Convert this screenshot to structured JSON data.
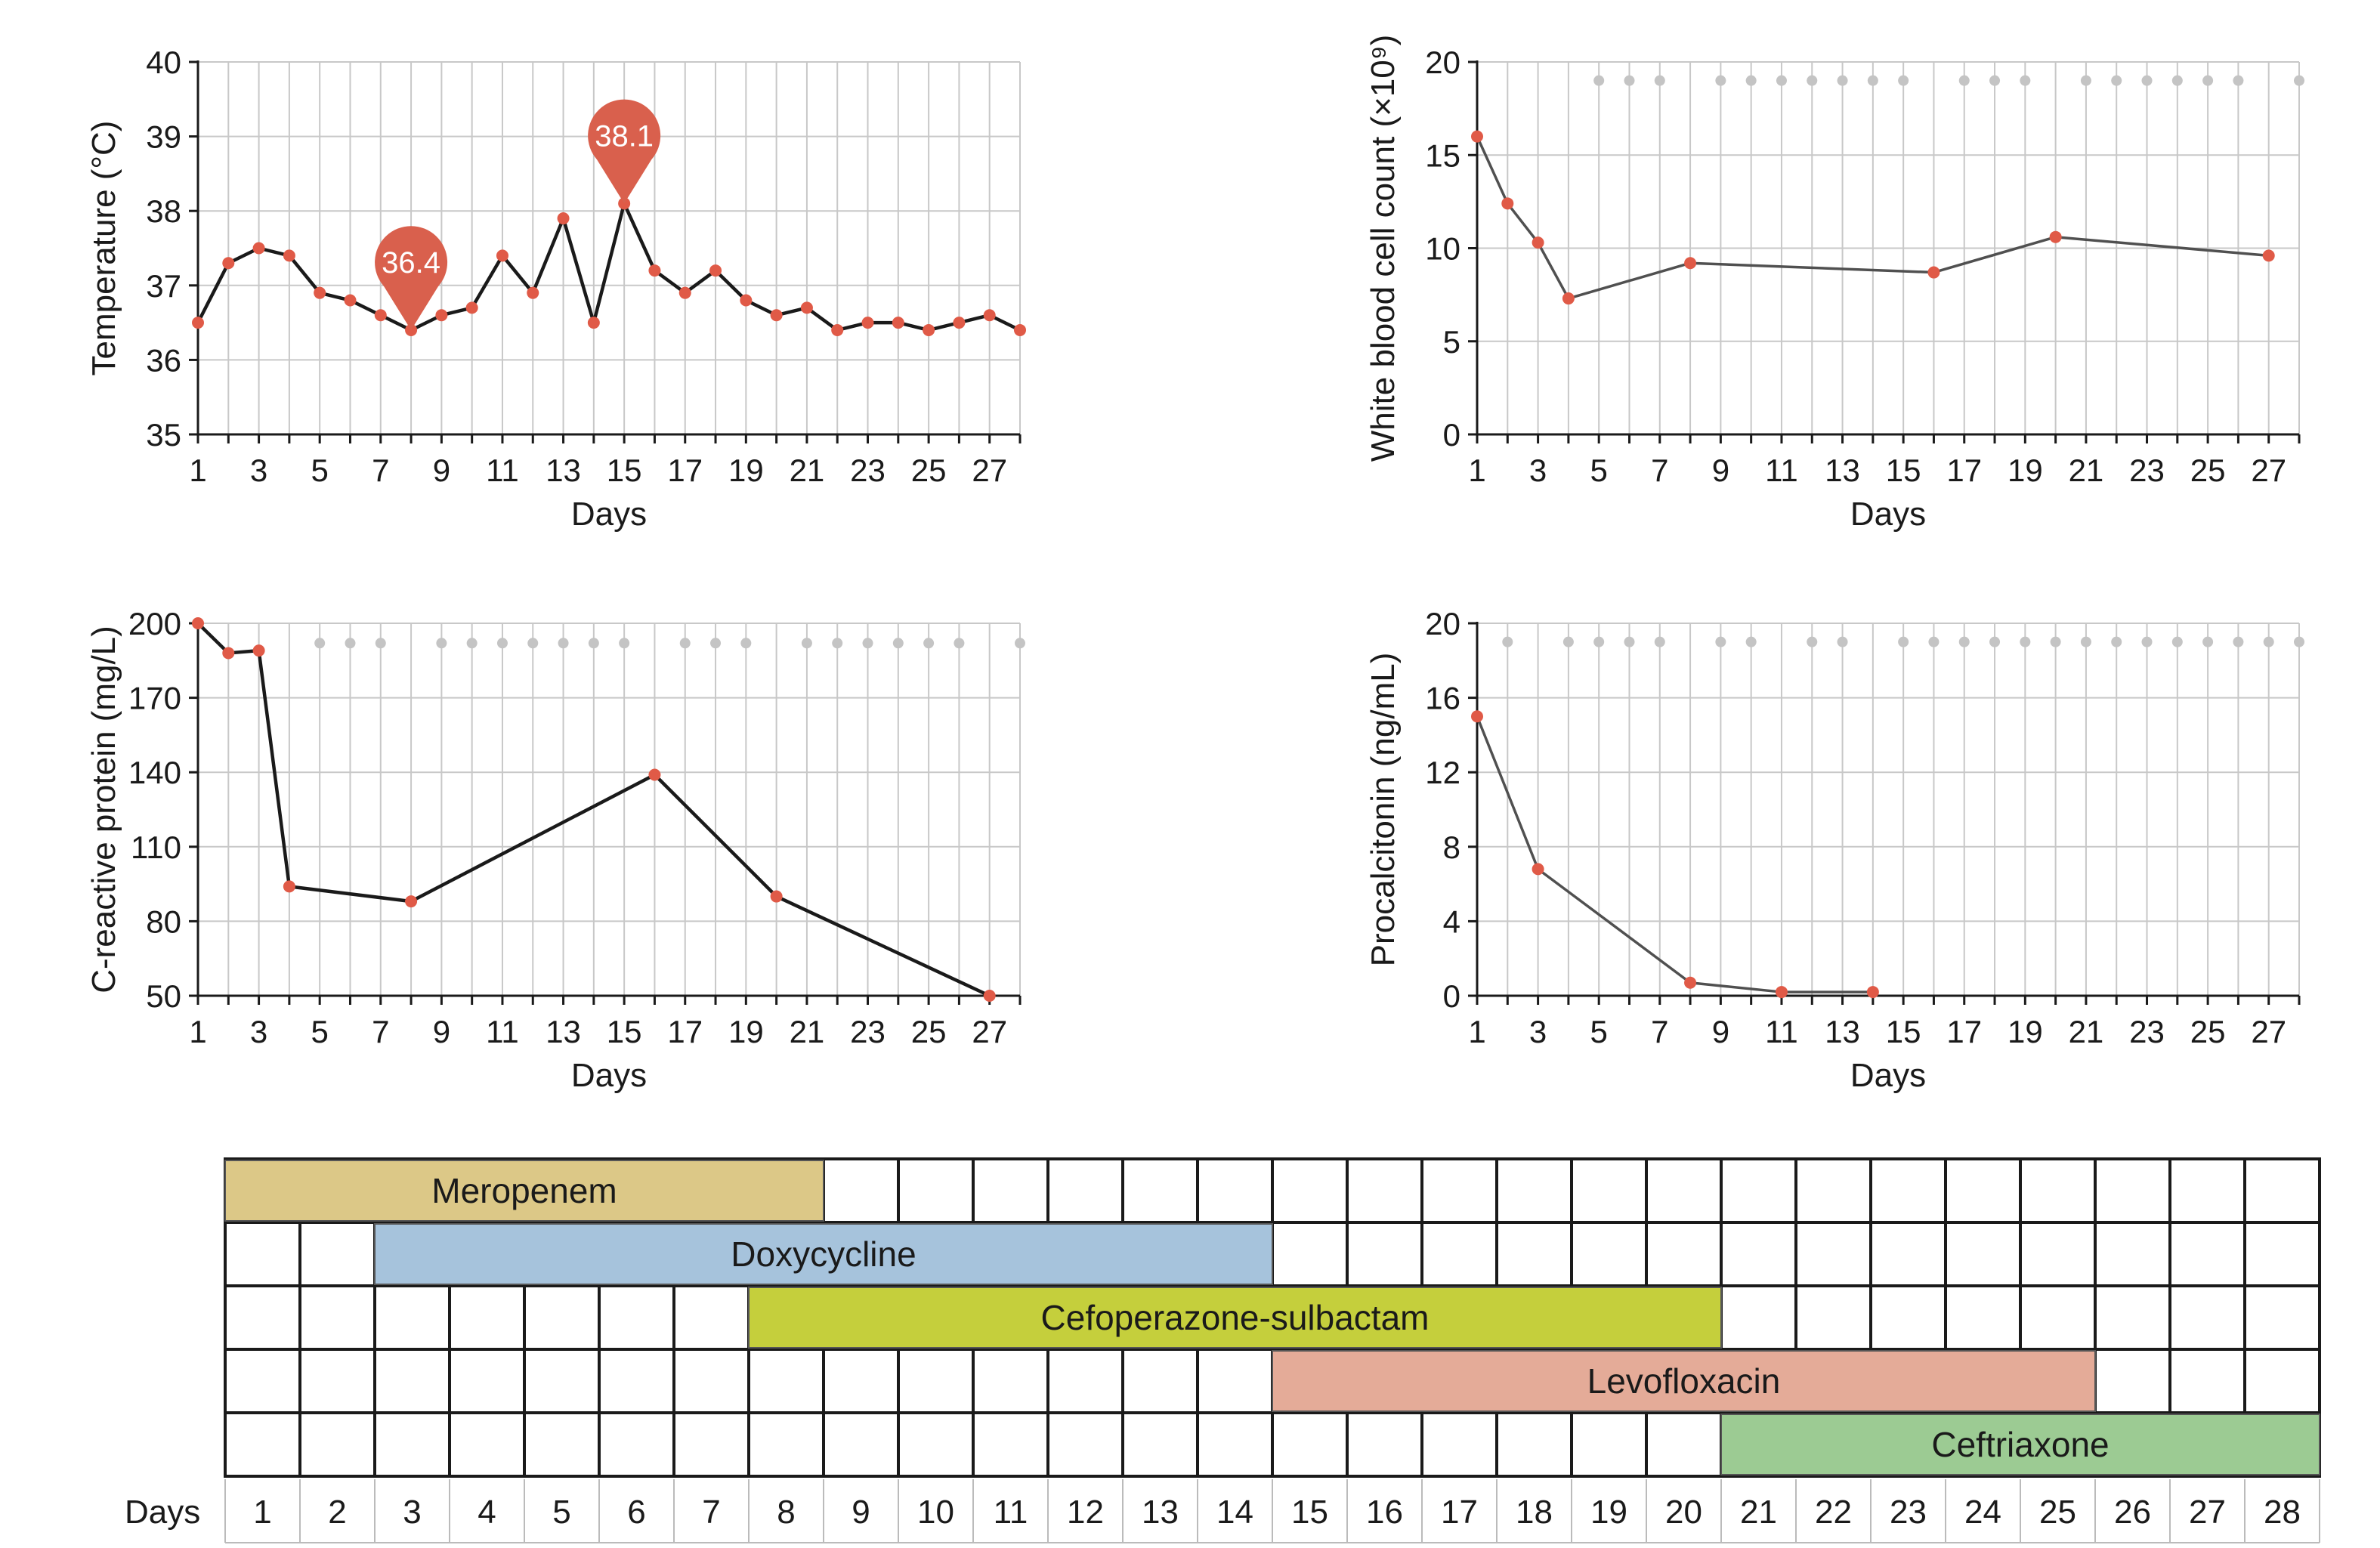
{
  "colors": {
    "grid": "#c8c8c8",
    "line": "#1a1a1a",
    "line_gray": "#505050",
    "marker": "#e05a47",
    "dot_gray": "#c4c4c4",
    "callout": "#d9604d"
  },
  "chart_data": [
    {
      "id": "temperature",
      "type": "line",
      "title": "",
      "xlabel": "Days",
      "ylabel": "Temperature (°C)",
      "xlim": [
        1,
        28
      ],
      "ylim": [
        35,
        40
      ],
      "xticks": [
        1,
        3,
        5,
        7,
        9,
        11,
        13,
        15,
        17,
        19,
        21,
        23,
        25,
        27
      ],
      "yticks": [
        35,
        36,
        37,
        38,
        39,
        40
      ],
      "grid": true,
      "x": [
        1,
        2,
        3,
        4,
        5,
        6,
        7,
        8,
        9,
        10,
        11,
        12,
        13,
        14,
        15,
        16,
        17,
        18,
        19,
        20,
        21,
        22,
        23,
        24,
        25,
        26,
        27,
        28
      ],
      "y": [
        36.5,
        37.3,
        37.5,
        37.4,
        36.9,
        36.8,
        36.6,
        36.4,
        36.6,
        36.7,
        37.4,
        36.9,
        37.9,
        36.5,
        38.1,
        37.2,
        36.9,
        37.2,
        36.8,
        36.6,
        36.7,
        36.4,
        36.5,
        36.5,
        36.4,
        36.5,
        36.6,
        36.4
      ],
      "callouts": [
        {
          "x": 8,
          "y": 36.4,
          "label": "36.4"
        },
        {
          "x": 15,
          "y": 38.1,
          "label": "38.1"
        }
      ],
      "gray_markers": [],
      "gray_marker_y": null
    },
    {
      "id": "wbc",
      "type": "line",
      "title": "",
      "xlabel": "Days",
      "ylabel": "White blood cell count (×10⁹)",
      "xlim": [
        1,
        28
      ],
      "ylim": [
        0,
        20
      ],
      "xticks": [
        1,
        3,
        5,
        7,
        9,
        11,
        13,
        15,
        17,
        19,
        21,
        23,
        25,
        27
      ],
      "yticks": [
        0,
        5,
        10,
        15,
        20
      ],
      "grid": true,
      "x": [
        1,
        2,
        3,
        4,
        8,
        16,
        20,
        27
      ],
      "y": [
        16,
        12.4,
        10.3,
        7.3,
        9.2,
        8.7,
        10.6,
        9.6
      ],
      "callouts": [],
      "gray_markers": [
        5,
        6,
        7,
        9,
        10,
        11,
        12,
        13,
        14,
        15,
        17,
        18,
        19,
        21,
        22,
        23,
        24,
        25,
        26,
        28
      ],
      "gray_marker_y": 19
    },
    {
      "id": "crp",
      "type": "line",
      "title": "",
      "xlabel": "Days",
      "ylabel": "C-reactive protein (mg/L)",
      "xlim": [
        1,
        28
      ],
      "ylim": [
        50,
        200
      ],
      "xticks": [
        1,
        3,
        5,
        7,
        9,
        11,
        13,
        15,
        17,
        19,
        21,
        23,
        25,
        27
      ],
      "yticks": [
        50,
        80,
        110,
        140,
        170,
        200
      ],
      "grid": true,
      "x": [
        1,
        2,
        3,
        4,
        8,
        16,
        20,
        27
      ],
      "y": [
        200,
        188,
        189,
        94,
        88,
        139,
        90,
        50
      ],
      "callouts": [],
      "gray_markers": [
        5,
        6,
        7,
        9,
        10,
        11,
        12,
        13,
        14,
        15,
        17,
        18,
        19,
        21,
        22,
        23,
        24,
        25,
        26,
        28
      ],
      "gray_marker_y": 192
    },
    {
      "id": "pct",
      "type": "line",
      "title": "",
      "xlabel": "Days",
      "ylabel": "Procalcitonin (ng/mL)",
      "xlim": [
        1,
        28
      ],
      "ylim": [
        0,
        20
      ],
      "xticks": [
        1,
        3,
        5,
        7,
        9,
        11,
        13,
        15,
        17,
        19,
        21,
        23,
        25,
        27
      ],
      "yticks": [
        0,
        4,
        8,
        12,
        16,
        20
      ],
      "grid": true,
      "x": [
        1,
        3,
        8,
        11,
        14
      ],
      "y": [
        15,
        6.8,
        0.7,
        0.2,
        0.2
      ],
      "callouts": [],
      "gray_markers": [
        2,
        4,
        5,
        6,
        7,
        9,
        10,
        12,
        13,
        15,
        16,
        17,
        18,
        19,
        20,
        21,
        22,
        23,
        24,
        25,
        26,
        27,
        28
      ],
      "gray_marker_y": 19
    }
  ],
  "timeline": {
    "days_label": "Days",
    "days": [
      "1",
      "2",
      "3",
      "4",
      "5",
      "6",
      "7",
      "8",
      "9",
      "10",
      "11",
      "12",
      "13",
      "14",
      "15",
      "16",
      "17",
      "18",
      "19",
      "20",
      "21",
      "22",
      "23",
      "24",
      "25",
      "26",
      "27",
      "28"
    ],
    "drugs": [
      {
        "name": "Meropenem",
        "start": 1,
        "end": 8,
        "color": "#dcc887"
      },
      {
        "name": "Doxycycline",
        "start": 3,
        "end": 14,
        "color": "#a6c3dc"
      },
      {
        "name": "Cefoperazone-sulbactam",
        "start": 8,
        "end": 20,
        "color": "#c5cf3c"
      },
      {
        "name": "Levofloxacin",
        "start": 15,
        "end": 25,
        "color": "#e4ab98"
      },
      {
        "name": "Ceftriaxone",
        "start": 21,
        "end": 28,
        "color": "#9ccb93"
      }
    ]
  }
}
